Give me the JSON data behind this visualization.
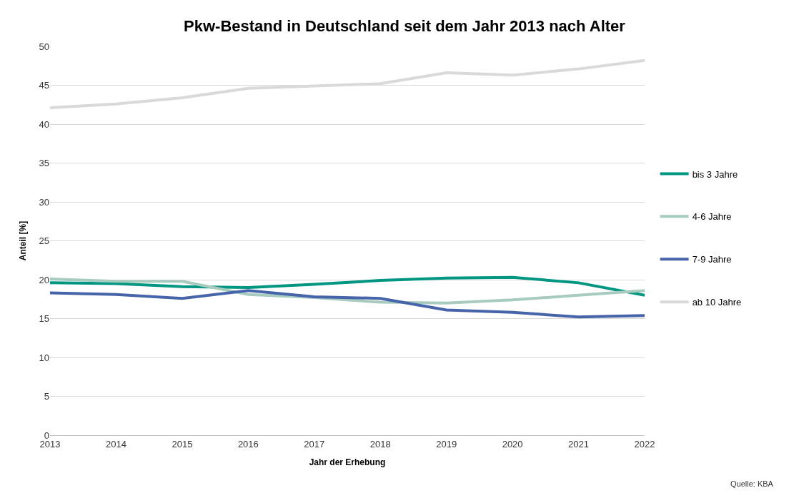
{
  "chart_data": {
    "type": "line",
    "title": "Pkw-Bestand in Deutschland seit dem Jahr 2013 nach Alter",
    "xlabel": "Jahr der Erhebung",
    "ylabel": "Anteil [%]",
    "x": [
      2013,
      2014,
      2015,
      2016,
      2017,
      2018,
      2019,
      2020,
      2021,
      2022
    ],
    "xlim": [
      2013,
      2022
    ],
    "xticks": [
      2013,
      2014,
      2015,
      2016,
      2017,
      2018,
      2019,
      2020,
      2021,
      2022
    ],
    "ylim": [
      0,
      50
    ],
    "yticks": [
      0,
      5,
      10,
      15,
      20,
      25,
      30,
      35,
      40,
      45,
      50
    ],
    "grid": "y",
    "legend": "right",
    "marker": "none",
    "line_style": "solid",
    "series": [
      {
        "name": "bis 3 Jahre",
        "color": "#009682",
        "values": [
          19.6,
          19.5,
          19.1,
          19.0,
          19.4,
          19.9,
          20.2,
          20.3,
          19.6,
          18.0
        ]
      },
      {
        "name": "4-6 Jahre",
        "color": "#a7cbbf",
        "values": [
          20.1,
          19.8,
          19.8,
          18.1,
          17.7,
          17.1,
          17.0,
          17.4,
          18.0,
          18.6
        ]
      },
      {
        "name": "7-9 Jahre",
        "color": "#4664aa",
        "values": [
          18.3,
          18.1,
          17.6,
          18.6,
          17.8,
          17.6,
          16.1,
          15.8,
          15.2,
          15.4
        ]
      },
      {
        "name": "ab 10 Jahre",
        "color": "#d9d9d9",
        "values": [
          42.1,
          42.6,
          43.4,
          44.6,
          44.9,
          45.2,
          46.6,
          46.3,
          47.1,
          48.2
        ]
      }
    ],
    "annotations": [
      "Quelle: KBA"
    ]
  }
}
